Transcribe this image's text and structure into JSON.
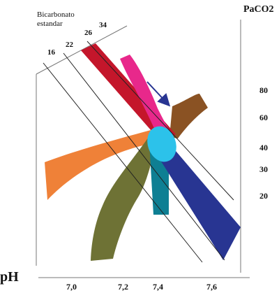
{
  "diagram": {
    "corner_label": "Bicarbonato estandar",
    "corner_label_lines": [
      "Bicarbonato",
      "estandar"
    ],
    "y_axis_title": "PaCO2",
    "x_axis_title": "pH",
    "bicarbonate_labels": [
      "16",
      "22",
      "26",
      "34"
    ],
    "paco2_ticks": [
      "80",
      "60",
      "40",
      "30",
      "20"
    ],
    "ph_ticks": [
      "7,0",
      "7,2",
      "7,4",
      "7,6"
    ],
    "band_colors": {
      "orange": "#ef8138",
      "olive": "#6e7235",
      "teal": "#0e7f93",
      "navy": "#283592",
      "brown": "#8a5223",
      "red": "#c4162b",
      "magenta": "#e8288b",
      "normal_ellipse": "#2cc2ea",
      "arrow": "#283592"
    }
  }
}
